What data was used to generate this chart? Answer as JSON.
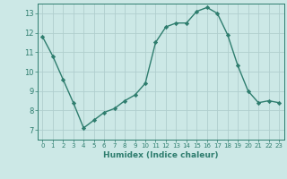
{
  "xlabel": "Humidex (Indice chaleur)",
  "x": [
    0,
    1,
    2,
    3,
    4,
    5,
    6,
    7,
    8,
    9,
    10,
    11,
    12,
    13,
    14,
    15,
    16,
    17,
    18,
    19,
    20,
    21,
    22,
    23
  ],
  "y": [
    11.8,
    10.8,
    9.6,
    8.4,
    7.1,
    7.5,
    7.9,
    8.1,
    8.5,
    8.8,
    9.4,
    11.5,
    12.3,
    12.5,
    12.5,
    13.1,
    13.3,
    13.0,
    11.9,
    10.3,
    9.0,
    8.4,
    8.5,
    8.4
  ],
  "line_color": "#2e7d6e",
  "marker": "D",
  "marker_size": 2.2,
  "bg_color": "#cce8e6",
  "grid_color": "#b0cece",
  "axis_color": "#2e7d6e",
  "ylim": [
    6.5,
    13.5
  ],
  "xlim": [
    -0.5,
    23.5
  ],
  "yticks": [
    7,
    8,
    9,
    10,
    11,
    12,
    13
  ],
  "xticks": [
    0,
    1,
    2,
    3,
    4,
    5,
    6,
    7,
    8,
    9,
    10,
    11,
    12,
    13,
    14,
    15,
    16,
    17,
    18,
    19,
    20,
    21,
    22,
    23
  ],
  "xlabel_fontsize": 6.5,
  "xlabel_bold": true,
  "xtick_fontsize": 5.0,
  "ytick_fontsize": 6.0
}
